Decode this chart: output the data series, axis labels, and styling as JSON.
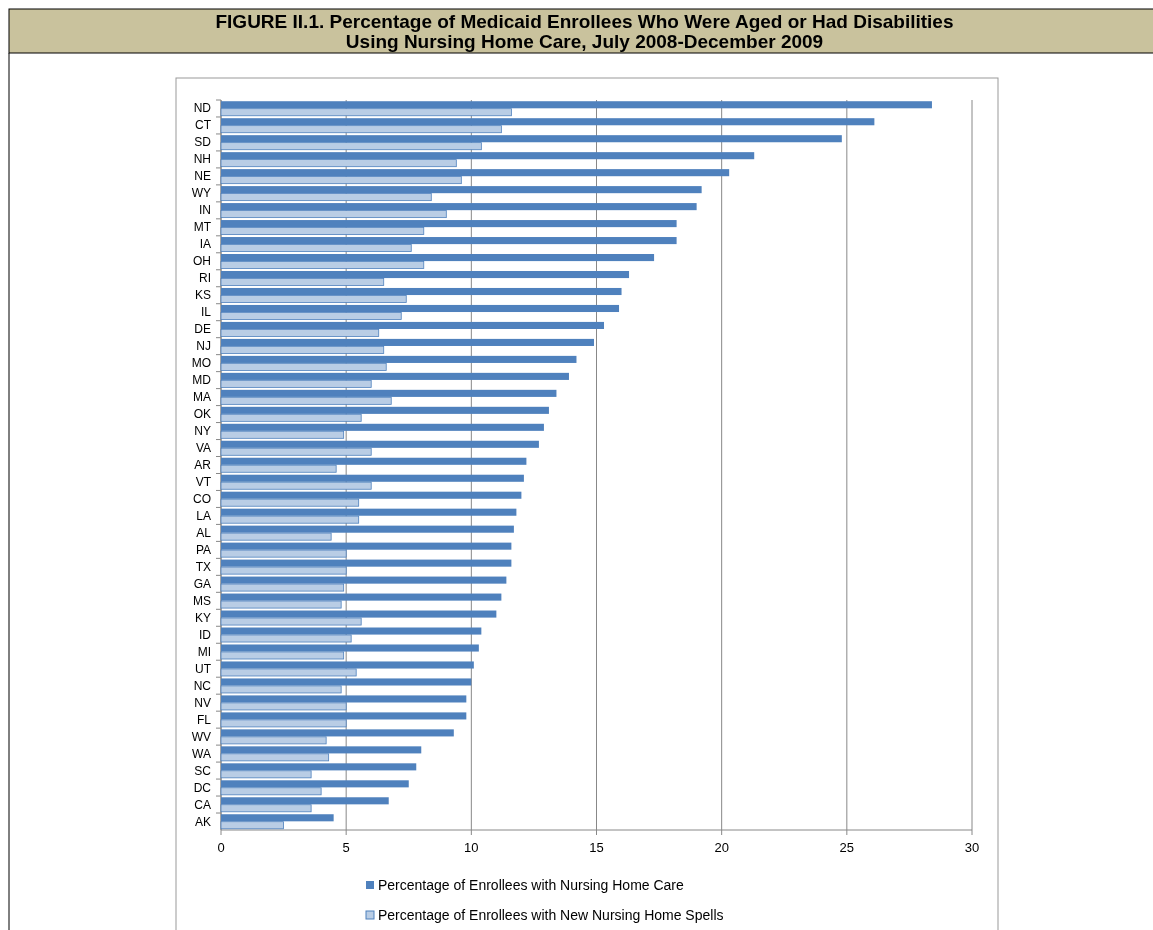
{
  "chart_data": {
    "type": "bar",
    "orientation": "horizontal",
    "title": "FIGURE II.1. Percentage of Medicaid Enrollees Who Were Aged or Had Disabilities Using Nursing Home Care, July 2008-December 2009",
    "categories": [
      "ND",
      "CT",
      "SD",
      "NH",
      "NE",
      "WY",
      "IN",
      "MT",
      "IA",
      "OH",
      "RI",
      "KS",
      "IL",
      "DE",
      "NJ",
      "MO",
      "MD",
      "MA",
      "OK",
      "NY",
      "VA",
      "AR",
      "VT",
      "CO",
      "LA",
      "AL",
      "PA",
      "TX",
      "GA",
      "MS",
      "KY",
      "ID",
      "MI",
      "UT",
      "NC",
      "NV",
      "FL",
      "WV",
      "WA",
      "SC",
      "DC",
      "CA",
      "AK"
    ],
    "series": [
      {
        "name": "Percentage of Enrollees with Nursing Home Care",
        "color": "#4f81bd",
        "values": [
          28.4,
          26.1,
          24.8,
          21.3,
          20.3,
          19.2,
          19.0,
          18.2,
          18.2,
          17.3,
          16.3,
          16.0,
          15.9,
          15.3,
          14.9,
          14.2,
          13.9,
          13.4,
          13.1,
          12.9,
          12.7,
          12.2,
          12.1,
          12.0,
          11.8,
          11.7,
          11.6,
          11.6,
          11.4,
          11.2,
          11.0,
          10.4,
          10.3,
          10.1,
          10.0,
          9.8,
          9.8,
          9.3,
          8.0,
          7.8,
          7.5,
          6.7,
          4.5
        ]
      },
      {
        "name": "Percentage of Enrollees with New Nursing Home Spells",
        "color": "#b9cde5",
        "values": [
          11.6,
          11.2,
          10.4,
          9.4,
          9.6,
          8.4,
          9.0,
          8.1,
          7.6,
          8.1,
          6.5,
          7.4,
          7.2,
          6.3,
          6.5,
          6.6,
          6.0,
          6.8,
          5.6,
          4.9,
          6.0,
          4.6,
          6.0,
          5.5,
          5.5,
          4.4,
          5.0,
          5.0,
          4.9,
          4.8,
          5.6,
          5.2,
          4.9,
          5.4,
          4.8,
          5.0,
          5.0,
          4.2,
          4.3,
          3.6,
          4.0,
          3.6,
          2.5
        ]
      }
    ],
    "xlim": [
      0,
      30
    ],
    "xticks": [
      0,
      5,
      10,
      15,
      20,
      25,
      30
    ],
    "grid": "x",
    "legend": "bottom"
  }
}
